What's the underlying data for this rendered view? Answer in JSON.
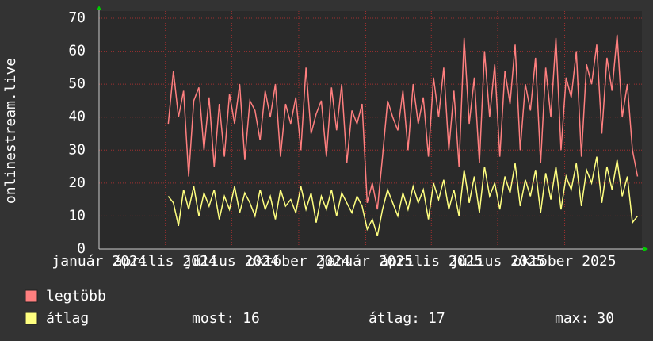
{
  "chart_data": {
    "type": "line",
    "y_label": "onlinestream.live",
    "x": [
      95,
      102,
      109,
      116,
      123,
      130,
      137,
      144,
      151,
      158,
      165,
      172,
      179,
      186,
      193,
      200,
      207,
      214,
      221,
      228,
      235,
      242,
      249,
      256,
      263,
      270,
      277,
      284,
      291,
      298,
      305,
      312,
      319,
      326,
      333,
      340,
      347,
      354,
      361,
      368,
      375,
      382,
      389,
      396,
      403,
      410,
      417,
      424,
      431,
      438,
      445,
      452,
      459,
      466,
      473,
      480,
      487,
      494,
      501,
      508,
      515,
      522,
      529,
      536,
      543,
      550,
      557,
      564,
      571,
      578,
      585,
      592,
      599,
      606,
      613,
      620,
      627,
      634,
      641,
      648,
      655,
      662,
      669,
      676,
      683,
      690,
      697,
      704,
      711,
      718,
      725,
      732,
      739
    ],
    "xlim": [
      0,
      745
    ],
    "xticks": [
      {
        "value": 0,
        "label": "január 2024"
      },
      {
        "value": 91,
        "label": "április 2024"
      },
      {
        "value": 182,
        "label": "július 2024"
      },
      {
        "value": 274,
        "label": "október 2024"
      },
      {
        "value": 366,
        "label": "január 2025"
      },
      {
        "value": 456,
        "label": "április 2025"
      },
      {
        "value": 547,
        "label": "július 2025"
      },
      {
        "value": 639,
        "label": "október 2025"
      }
    ],
    "ylim": [
      0,
      70
    ],
    "yticks": [
      0,
      10,
      20,
      30,
      40,
      50,
      60,
      70
    ],
    "grid": true,
    "series": [
      {
        "name": "legtöbb",
        "color": "#ff7f7f",
        "values": [
          38,
          54,
          40,
          48,
          22,
          45,
          49,
          30,
          46,
          25,
          44,
          28,
          47,
          38,
          50,
          27,
          45,
          42,
          33,
          48,
          40,
          50,
          28,
          44,
          38,
          46,
          30,
          55,
          35,
          41,
          45,
          28,
          49,
          36,
          50,
          26,
          42,
          38,
          44,
          14,
          20,
          12,
          28,
          45,
          40,
          36,
          48,
          30,
          50,
          38,
          46,
          28,
          52,
          40,
          55,
          30,
          48,
          25,
          64,
          38,
          52,
          26,
          60,
          40,
          56,
          28,
          54,
          44,
          62,
          30,
          50,
          42,
          58,
          26,
          55,
          40,
          64,
          30,
          52,
          46,
          60,
          28,
          56,
          50,
          62,
          35,
          58,
          48,
          65,
          40,
          50,
          30,
          22
        ]
      },
      {
        "name": "átlag",
        "color": "#ffff80",
        "values": [
          16,
          14,
          7,
          18,
          12,
          19,
          10,
          17,
          13,
          18,
          9,
          16,
          12,
          19,
          11,
          17,
          14,
          10,
          18,
          12,
          16,
          9,
          18,
          13,
          15,
          11,
          19,
          12,
          17,
          8,
          16,
          12,
          18,
          10,
          17,
          14,
          11,
          16,
          13,
          6,
          9,
          4,
          12,
          18,
          14,
          10,
          17,
          12,
          19,
          14,
          18,
          9,
          20,
          15,
          21,
          12,
          18,
          10,
          24,
          14,
          22,
          11,
          25,
          16,
          20,
          12,
          22,
          17,
          26,
          13,
          21,
          16,
          24,
          11,
          23,
          15,
          25,
          12,
          22,
          18,
          26,
          13,
          24,
          20,
          28,
          14,
          25,
          18,
          27,
          16,
          22,
          8,
          10
        ]
      }
    ],
    "stats": [
      {
        "label": "most:",
        "value": 16
      },
      {
        "label": "átlag:",
        "value": 17
      },
      {
        "label": "max:",
        "value": 30
      }
    ]
  }
}
